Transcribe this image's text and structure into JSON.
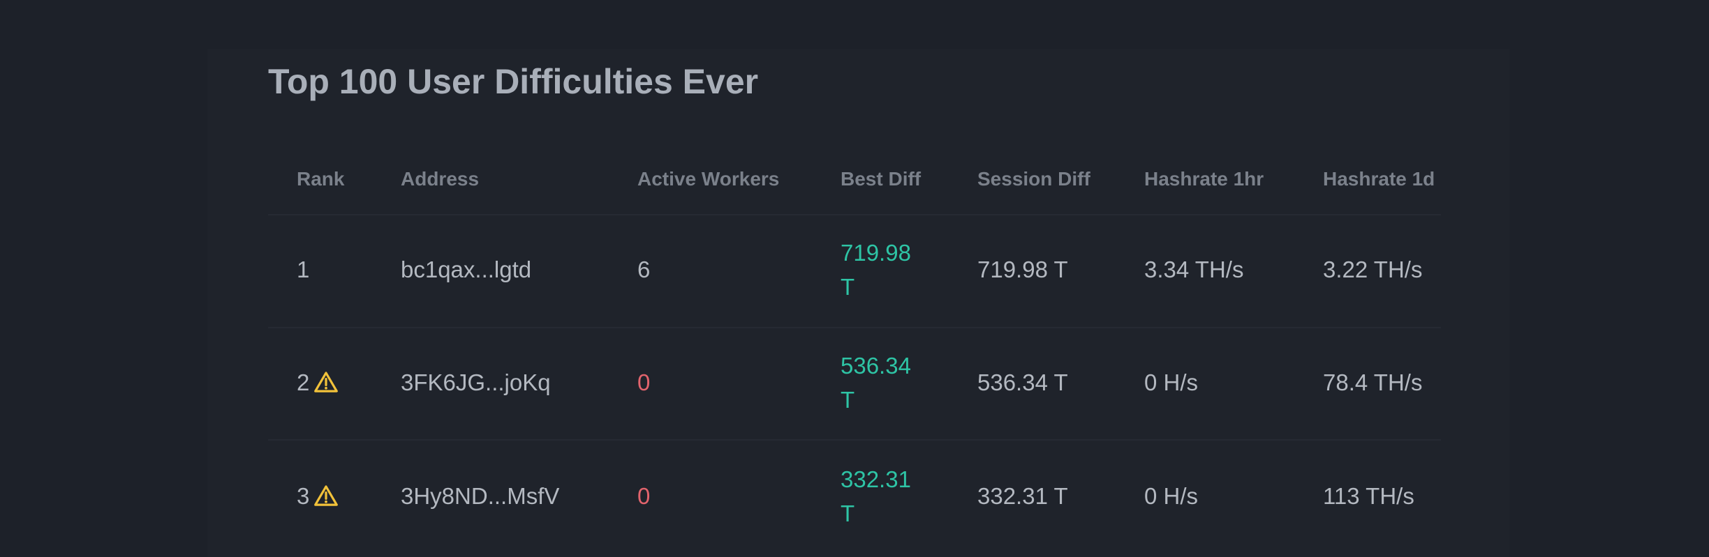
{
  "title": "Top 100 User Difficulties Ever",
  "table": {
    "header": [
      "Rank",
      "Address",
      "Active Workers",
      "Best Diff",
      "Session Diff",
      "Hashrate 1hr",
      "Hashrate 1d"
    ],
    "rows": [
      [
        "1",
        "bc1qax...lgtd",
        "6",
        "719.98 T",
        "719.98 T",
        "3.34 TH/s",
        "3.22 TH/s"
      ],
      [
        "2",
        "3FK6JG...joKq",
        "0",
        "536.34 T",
        "536.34 T",
        "0 H/s",
        "78.4 TH/s"
      ],
      [
        "3",
        "3Hy8ND...MsfV",
        "0",
        "332.31 T",
        "332.31 T",
        "0 H/s",
        "113 TH/s"
      ]
    ]
  }
}
